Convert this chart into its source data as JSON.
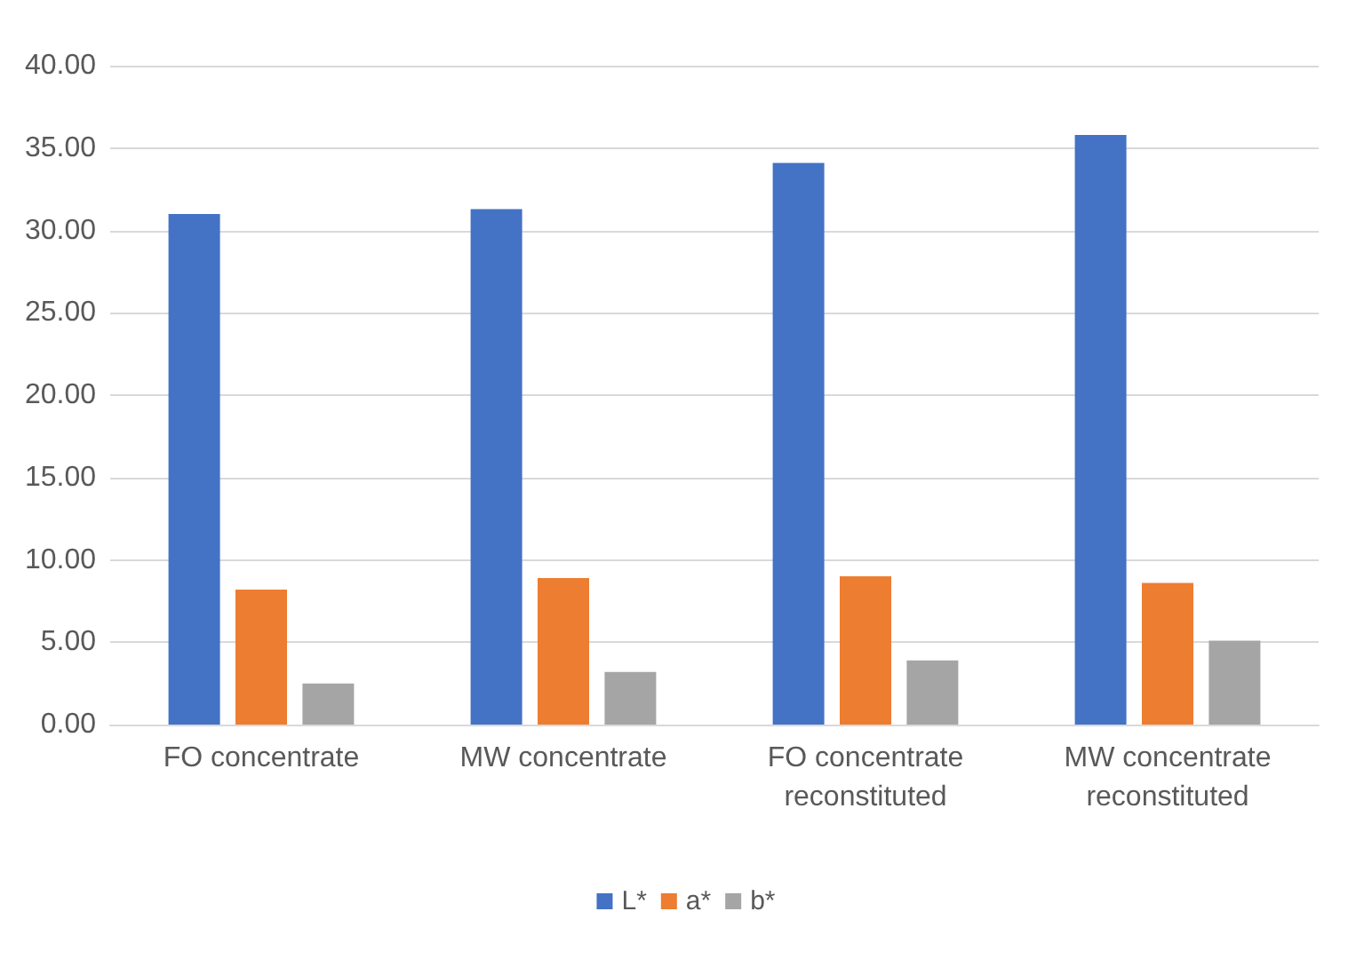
{
  "chart_data": {
    "type": "bar",
    "categories": [
      "FO concentrate",
      "MW concentrate",
      "FO concentrate\nreconstituted",
      "MW concentrate\nreconstituted"
    ],
    "series": [
      {
        "name": "L*",
        "color": "#4472c4",
        "values": [
          31.0,
          31.3,
          34.1,
          35.8
        ]
      },
      {
        "name": "a*",
        "color": "#ed7d31",
        "values": [
          8.2,
          8.9,
          9.0,
          8.6
        ]
      },
      {
        "name": "b*",
        "color": "#a5a5a5",
        "values": [
          2.5,
          3.2,
          3.9,
          5.1
        ]
      }
    ],
    "ylim": [
      0,
      40
    ],
    "yticks": [
      {
        "value": 0,
        "label": "0.00"
      },
      {
        "value": 5,
        "label": "5.00"
      },
      {
        "value": 10,
        "label": "10.00"
      },
      {
        "value": 15,
        "label": "15.00"
      },
      {
        "value": 20,
        "label": "20.00"
      },
      {
        "value": 25,
        "label": "25.00"
      },
      {
        "value": 30,
        "label": "30.00"
      },
      {
        "value": 35,
        "label": "35.00"
      },
      {
        "value": 40,
        "label": "40.00"
      }
    ],
    "grid": "y",
    "legend": "bottom"
  }
}
